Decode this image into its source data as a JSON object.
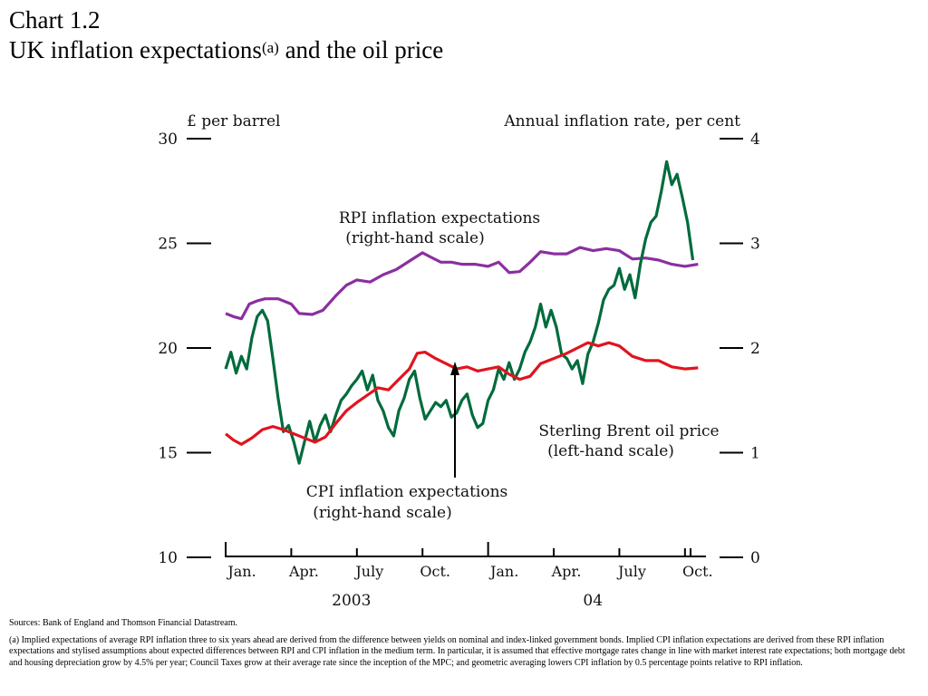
{
  "title": {
    "line1": "Chart 1.2",
    "line2_main": "UK inflation expectations",
    "line2_sup": "(a)",
    "line2_end": " and the oil price"
  },
  "chart_data": {
    "type": "line",
    "left_axis": {
      "label": "£ per barrel",
      "min": 10,
      "max": 30,
      "ticks": [
        10,
        15,
        20,
        25,
        30
      ]
    },
    "right_axis": {
      "label": "Annual inflation rate, per cent",
      "min": 0,
      "max": 4,
      "ticks": [
        0,
        1,
        2,
        3,
        4
      ]
    },
    "x_axis": {
      "start": 2003.0,
      "end": 2004.83,
      "month_labels": [
        {
          "label": "Jan.",
          "t": 2003.0
        },
        {
          "label": "Apr.",
          "t": 2003.25
        },
        {
          "label": "July",
          "t": 2003.5
        },
        {
          "label": "Oct.",
          "t": 2003.75
        },
        {
          "label": "Jan.",
          "t": 2004.0
        },
        {
          "label": "Apr.",
          "t": 2004.25
        },
        {
          "label": "July",
          "t": 2004.5
        },
        {
          "label": "Oct.",
          "t": 2004.75
        }
      ],
      "year_labels": [
        {
          "label": "2003",
          "t": 2003.5
        },
        {
          "label": "04",
          "t": 2004.42
        }
      ]
    },
    "annotations": {
      "rpi_line1": "RPI inflation expectations",
      "rpi_line2": "(right-hand scale)",
      "oil_line1": "Sterling Brent oil price",
      "oil_line2": "(left-hand scale)",
      "cpi_line1": "CPI inflation expectations",
      "cpi_line2": "(right-hand scale)"
    },
    "series": [
      {
        "name": "RPI inflation expectations",
        "axis": "right",
        "color": "#8B2FA0",
        "points": [
          [
            2003.0,
            2.33
          ],
          [
            2003.03,
            2.3
          ],
          [
            2003.06,
            2.28
          ],
          [
            2003.09,
            2.42
          ],
          [
            2003.12,
            2.45
          ],
          [
            2003.15,
            2.47
          ],
          [
            2003.2,
            2.47
          ],
          [
            2003.25,
            2.42
          ],
          [
            2003.28,
            2.33
          ],
          [
            2003.33,
            2.32
          ],
          [
            2003.37,
            2.36
          ],
          [
            2003.42,
            2.5
          ],
          [
            2003.46,
            2.6
          ],
          [
            2003.5,
            2.65
          ],
          [
            2003.55,
            2.63
          ],
          [
            2003.6,
            2.7
          ],
          [
            2003.65,
            2.75
          ],
          [
            2003.7,
            2.83
          ],
          [
            2003.75,
            2.91
          ],
          [
            2003.78,
            2.87
          ],
          [
            2003.82,
            2.82
          ],
          [
            2003.86,
            2.82
          ],
          [
            2003.9,
            2.8
          ],
          [
            2003.95,
            2.8
          ],
          [
            2004.0,
            2.78
          ],
          [
            2004.04,
            2.82
          ],
          [
            2004.08,
            2.72
          ],
          [
            2004.12,
            2.73
          ],
          [
            2004.16,
            2.82
          ],
          [
            2004.2,
            2.92
          ],
          [
            2004.25,
            2.9
          ],
          [
            2004.3,
            2.9
          ],
          [
            2004.35,
            2.96
          ],
          [
            2004.4,
            2.93
          ],
          [
            2004.45,
            2.95
          ],
          [
            2004.5,
            2.93
          ],
          [
            2004.55,
            2.85
          ],
          [
            2004.6,
            2.86
          ],
          [
            2004.65,
            2.84
          ],
          [
            2004.7,
            2.8
          ],
          [
            2004.75,
            2.78
          ],
          [
            2004.8,
            2.8
          ]
        ]
      },
      {
        "name": "Sterling Brent oil price",
        "axis": "left",
        "color": "#006B3C",
        "points": [
          [
            2003.0,
            19.0
          ],
          [
            2003.02,
            19.8
          ],
          [
            2003.04,
            18.8
          ],
          [
            2003.06,
            19.6
          ],
          [
            2003.08,
            19.0
          ],
          [
            2003.1,
            20.5
          ],
          [
            2003.12,
            21.5
          ],
          [
            2003.14,
            21.8
          ],
          [
            2003.16,
            21.3
          ],
          [
            2003.18,
            19.5
          ],
          [
            2003.2,
            17.6
          ],
          [
            2003.22,
            16.0
          ],
          [
            2003.24,
            16.3
          ],
          [
            2003.26,
            15.5
          ],
          [
            2003.28,
            14.5
          ],
          [
            2003.3,
            15.5
          ],
          [
            2003.32,
            16.5
          ],
          [
            2003.34,
            15.5
          ],
          [
            2003.36,
            16.3
          ],
          [
            2003.38,
            16.8
          ],
          [
            2003.4,
            16.0
          ],
          [
            2003.42,
            16.8
          ],
          [
            2003.44,
            17.5
          ],
          [
            2003.46,
            17.8
          ],
          [
            2003.48,
            18.2
          ],
          [
            2003.5,
            18.5
          ],
          [
            2003.52,
            18.9
          ],
          [
            2003.54,
            18.0
          ],
          [
            2003.56,
            18.7
          ],
          [
            2003.58,
            17.5
          ],
          [
            2003.6,
            17.0
          ],
          [
            2003.62,
            16.2
          ],
          [
            2003.64,
            15.8
          ],
          [
            2003.66,
            17.0
          ],
          [
            2003.68,
            17.6
          ],
          [
            2003.7,
            18.5
          ],
          [
            2003.72,
            18.9
          ],
          [
            2003.74,
            17.6
          ],
          [
            2003.76,
            16.6
          ],
          [
            2003.78,
            17.0
          ],
          [
            2003.8,
            17.4
          ],
          [
            2003.82,
            17.2
          ],
          [
            2003.84,
            17.5
          ],
          [
            2003.86,
            16.7
          ],
          [
            2003.88,
            16.9
          ],
          [
            2003.9,
            17.5
          ],
          [
            2003.92,
            17.8
          ],
          [
            2003.94,
            16.8
          ],
          [
            2003.96,
            16.2
          ],
          [
            2003.98,
            16.4
          ],
          [
            2004.0,
            17.5
          ],
          [
            2004.02,
            18.0
          ],
          [
            2004.04,
            19.0
          ],
          [
            2004.06,
            18.5
          ],
          [
            2004.08,
            19.3
          ],
          [
            2004.1,
            18.5
          ],
          [
            2004.12,
            19.0
          ],
          [
            2004.14,
            19.8
          ],
          [
            2004.16,
            20.3
          ],
          [
            2004.18,
            21.0
          ],
          [
            2004.2,
            22.1
          ],
          [
            2004.22,
            21.0
          ],
          [
            2004.24,
            21.8
          ],
          [
            2004.26,
            21.0
          ],
          [
            2004.28,
            19.7
          ],
          [
            2004.3,
            19.5
          ],
          [
            2004.32,
            19.0
          ],
          [
            2004.34,
            19.4
          ],
          [
            2004.36,
            18.3
          ],
          [
            2004.38,
            19.7
          ],
          [
            2004.4,
            20.3
          ],
          [
            2004.42,
            21.2
          ],
          [
            2004.44,
            22.3
          ],
          [
            2004.46,
            22.8
          ],
          [
            2004.48,
            23.0
          ],
          [
            2004.5,
            23.8
          ],
          [
            2004.52,
            22.8
          ],
          [
            2004.54,
            23.5
          ],
          [
            2004.56,
            22.4
          ],
          [
            2004.58,
            24.0
          ],
          [
            2004.6,
            25.2
          ],
          [
            2004.62,
            26.0
          ],
          [
            2004.64,
            26.3
          ],
          [
            2004.66,
            27.5
          ],
          [
            2004.68,
            28.9
          ],
          [
            2004.7,
            27.8
          ],
          [
            2004.72,
            28.3
          ],
          [
            2004.74,
            27.2
          ],
          [
            2004.76,
            26.0
          ],
          [
            2004.78,
            24.2
          ]
        ]
      },
      {
        "name": "CPI inflation expectations",
        "axis": "right",
        "color": "#E0141E",
        "points": [
          [
            2003.0,
            1.18
          ],
          [
            2003.03,
            1.12
          ],
          [
            2003.06,
            1.08
          ],
          [
            2003.1,
            1.14
          ],
          [
            2003.14,
            1.22
          ],
          [
            2003.18,
            1.25
          ],
          [
            2003.22,
            1.22
          ],
          [
            2003.26,
            1.18
          ],
          [
            2003.3,
            1.14
          ],
          [
            2003.34,
            1.1
          ],
          [
            2003.38,
            1.15
          ],
          [
            2003.42,
            1.28
          ],
          [
            2003.46,
            1.4
          ],
          [
            2003.5,
            1.48
          ],
          [
            2003.54,
            1.55
          ],
          [
            2003.58,
            1.62
          ],
          [
            2003.62,
            1.6
          ],
          [
            2003.66,
            1.7
          ],
          [
            2003.7,
            1.8
          ],
          [
            2003.73,
            1.95
          ],
          [
            2003.76,
            1.96
          ],
          [
            2003.8,
            1.9
          ],
          [
            2003.84,
            1.85
          ],
          [
            2003.88,
            1.8
          ],
          [
            2003.92,
            1.82
          ],
          [
            2003.96,
            1.78
          ],
          [
            2004.0,
            1.8
          ],
          [
            2004.04,
            1.82
          ],
          [
            2004.08,
            1.75
          ],
          [
            2004.12,
            1.7
          ],
          [
            2004.16,
            1.73
          ],
          [
            2004.2,
            1.85
          ],
          [
            2004.25,
            1.9
          ],
          [
            2004.3,
            1.95
          ],
          [
            2004.34,
            2.0
          ],
          [
            2004.38,
            2.05
          ],
          [
            2004.42,
            2.02
          ],
          [
            2004.46,
            2.05
          ],
          [
            2004.5,
            2.02
          ],
          [
            2004.55,
            1.92
          ],
          [
            2004.6,
            1.88
          ],
          [
            2004.65,
            1.88
          ],
          [
            2004.7,
            1.82
          ],
          [
            2004.75,
            1.8
          ],
          [
            2004.8,
            1.81
          ]
        ]
      }
    ]
  },
  "footnotes": {
    "sources": "Sources:  Bank of England and Thomson Financial Datastream.",
    "note_a": "(a)  Implied expectations of average RPI inflation three to six years ahead are derived from the difference between yields on nominal and index-linked government bonds.  Implied CPI inflation expectations are derived from these RPI inflation expectations and stylised assumptions about expected differences between RPI and CPI inflation in the medium term.  In particular, it is assumed that effective mortgage rates change in line with market interest rate expectations;  both mortgage debt and housing depreciation grow by 4.5% per year;  Council Taxes grow at their average rate since the inception of the MPC;  and geometric averaging lowers CPI inflation by 0.5 percentage points relative to RPI inflation."
  }
}
